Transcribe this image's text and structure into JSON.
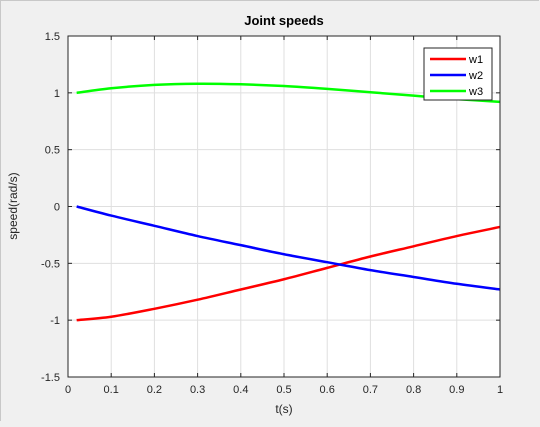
{
  "chart_data": {
    "type": "line",
    "title": "Joint speeds",
    "xlabel": "t(s)",
    "ylabel": "speed(rad/s)",
    "xlim": [
      0,
      1
    ],
    "ylim": [
      -1.5,
      1.5
    ],
    "xticks": [
      "0",
      "0.1",
      "0.2",
      "0.3",
      "0.4",
      "0.5",
      "0.6",
      "0.7",
      "0.8",
      "0.9",
      "1"
    ],
    "yticks": [
      "-1.5",
      "-1",
      "-0.5",
      "0",
      "0.5",
      "1",
      "1.5"
    ],
    "grid": true,
    "legend_position": "top-right",
    "x": [
      0.02,
      0.1,
      0.2,
      0.3,
      0.4,
      0.5,
      0.6,
      0.7,
      0.8,
      0.9,
      1.0
    ],
    "series": [
      {
        "name": "w1",
        "color": "#ff0000",
        "values": [
          -1.0,
          -0.97,
          -0.9,
          -0.82,
          -0.73,
          -0.64,
          -0.54,
          -0.44,
          -0.35,
          -0.26,
          -0.18
        ]
      },
      {
        "name": "w2",
        "color": "#0000ff",
        "values": [
          0.0,
          -0.08,
          -0.17,
          -0.26,
          -0.34,
          -0.42,
          -0.49,
          -0.56,
          -0.62,
          -0.68,
          -0.73
        ]
      },
      {
        "name": "w3",
        "color": "#00ff00",
        "values": [
          1.0,
          1.04,
          1.07,
          1.08,
          1.075,
          1.06,
          1.035,
          1.005,
          0.975,
          0.945,
          0.92
        ]
      }
    ]
  }
}
